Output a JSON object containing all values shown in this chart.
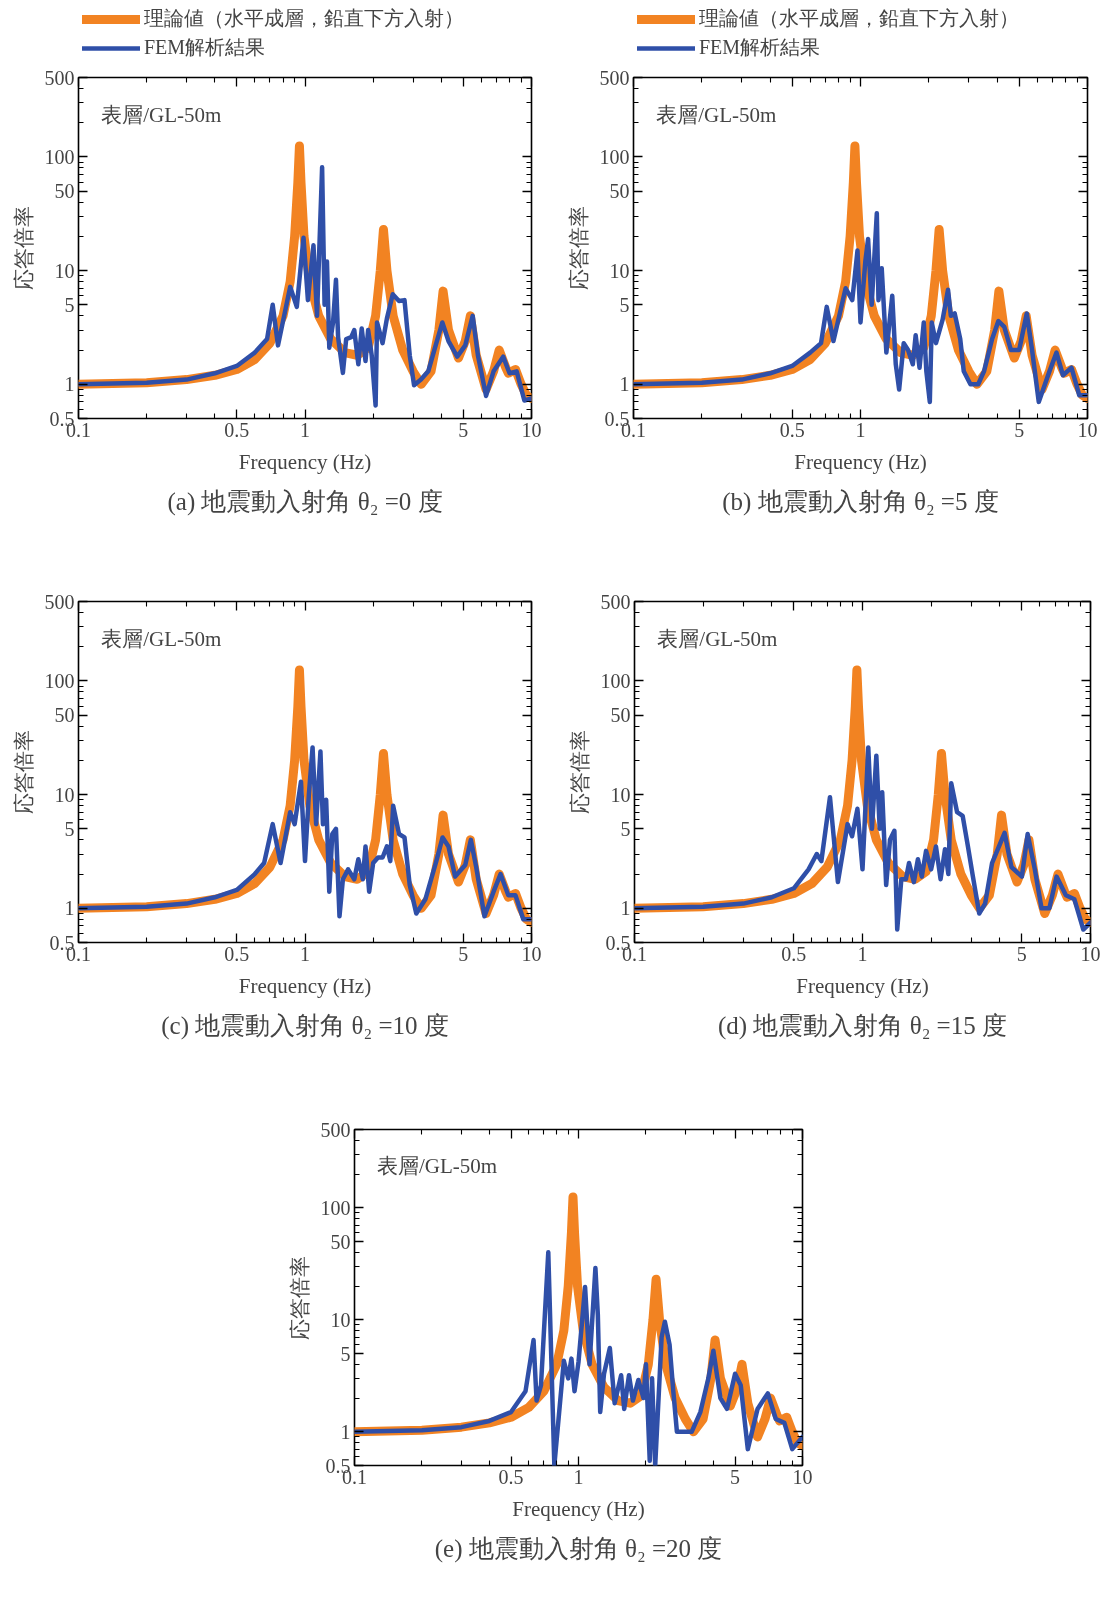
{
  "chart_data": [
    {
      "type": "line",
      "title": "(a) 地震動入射角 θ₂ =0 度",
      "xlabel": "Frequency (Hz)",
      "ylabel": "応答倍率",
      "annotations": [
        "表層/GL-50m"
      ],
      "log": "xy",
      "legend": "top",
      "xlim": [
        0.1,
        10
      ],
      "ylim": [
        0.5,
        500
      ],
      "xticks": [
        0.1,
        {
          "value": 0.2,
          "label": null
        },
        {
          "value": 0.3,
          "label": null
        },
        {
          "value": 0.4,
          "label": null
        },
        0.5,
        {
          "value": 0.6,
          "label": null
        },
        {
          "value": 0.7,
          "label": null
        },
        {
          "value": 0.8,
          "label": null
        },
        {
          "value": 0.9,
          "label": null
        },
        1,
        {
          "value": 2,
          "label": null
        },
        {
          "value": 3,
          "label": null
        },
        {
          "value": 4,
          "label": null
        },
        5,
        {
          "value": 6,
          "label": null
        },
        {
          "value": 7,
          "label": null
        },
        {
          "value": 8,
          "label": null
        },
        {
          "value": 9,
          "label": null
        },
        10
      ],
      "yticks": [
        0.5,
        {
          "value": 0.6,
          "label": null
        },
        {
          "value": 0.7,
          "label": null
        },
        {
          "value": 0.8,
          "label": null
        },
        {
          "value": 0.9,
          "label": null
        },
        1,
        {
          "value": 2,
          "label": null
        },
        {
          "value": 3,
          "label": null
        },
        {
          "value": 4,
          "label": null
        },
        5,
        {
          "value": 6,
          "label": null
        },
        {
          "value": 7,
          "label": null
        },
        {
          "value": 8,
          "label": null
        },
        {
          "value": 9,
          "label": null
        },
        10,
        {
          "value": 20,
          "label": null
        },
        {
          "value": 30,
          "label": null
        },
        {
          "value": 40,
          "label": null
        },
        50,
        {
          "value": 60,
          "label": null
        },
        {
          "value": 70,
          "label": null
        },
        {
          "value": 80,
          "label": null
        },
        {
          "value": 90,
          "label": null
        },
        100,
        {
          "value": 200,
          "label": null
        },
        {
          "value": 300,
          "label": null
        },
        {
          "value": 400,
          "label": null
        },
        500
      ],
      "series": [
        {
          "name": "理論値（水平成層，鉛直下方入射）",
          "color": "#f28322",
          "x": [
            0.1,
            0.2,
            0.3,
            0.4,
            0.5,
            0.6,
            0.7,
            0.8,
            0.86,
            0.9,
            0.93,
            0.945,
            0.96,
            0.99,
            1.05,
            1.15,
            1.3,
            1.5,
            1.7,
            1.9,
            2.05,
            2.15,
            2.22,
            2.3,
            2.45,
            2.7,
            3.0,
            3.26,
            3.6,
            3.9,
            4.07,
            4.3,
            4.76,
            5.1,
            5.37,
            5.7,
            6.3,
            6.8,
            7.2,
            7.7,
            7.9,
            8.5,
            9.0,
            9.5,
            10
          ],
          "values": [
            1.0,
            1.03,
            1.1,
            1.2,
            1.35,
            1.65,
            2.3,
            4,
            8,
            20,
            60,
            125,
            60,
            20,
            8,
            4,
            2.5,
            1.9,
            1.8,
            2.1,
            4,
            10,
            23,
            10,
            4,
            2,
            1.3,
            1.0,
            1.3,
            3,
            6.6,
            3,
            1.7,
            2.4,
            4.0,
            1.8,
            0.9,
            1.3,
            2.0,
            1.4,
            1.25,
            1.35,
            1.0,
            0.8,
            0.75
          ]
        },
        {
          "name": "FEM解析結果",
          "color": "#2f4fa8",
          "x": [
            0.1,
            0.2,
            0.3,
            0.4,
            0.5,
            0.6,
            0.68,
            0.72,
            0.76,
            0.86,
            0.92,
            0.985,
            1.03,
            1.09,
            1.13,
            1.19,
            1.22,
            1.25,
            1.28,
            1.33,
            1.37,
            1.4,
            1.47,
            1.52,
            1.6,
            1.65,
            1.72,
            1.78,
            1.85,
            1.9,
            1.97,
            2.05,
            2.08,
            2.2,
            2.3,
            2.44,
            2.6,
            2.75,
            2.9,
            3.03,
            3.25,
            3.5,
            3.8,
            4.04,
            4.3,
            4.7,
            5.1,
            5.5,
            5.8,
            6.3,
            6.8,
            7.5,
            8.0,
            8.6,
            9.3,
            10
          ],
          "values": [
            1.0,
            1.03,
            1.1,
            1.25,
            1.45,
            1.9,
            2.5,
            5.0,
            2.2,
            7.2,
            4.8,
            19.5,
            5.5,
            16.7,
            4.0,
            81,
            5,
            12,
            2.1,
            3.5,
            8.3,
            2.6,
            1.26,
            2.5,
            2.6,
            3.0,
            1.5,
            3.1,
            1.6,
            3.0,
            1.8,
            0.65,
            3.5,
            2.3,
            3.8,
            6.2,
            5.4,
            5.5,
            1.8,
            0.98,
            1.1,
            1.3,
            2.3,
            3.5,
            2.4,
            1.75,
            2.2,
            4.0,
            1.8,
            0.79,
            1.3,
            1.75,
            1.25,
            1.3,
            0.72,
            0.75
          ]
        }
      ]
    },
    {
      "type": "line",
      "title": "(b) 地震動入射角 θ₂ =5 度",
      "xlabel": "Frequency (Hz)",
      "ylabel": "応答倍率",
      "annotations": [
        "表層/GL-50m"
      ],
      "log": "xy",
      "legend": "top",
      "xlim": [
        0.1,
        10
      ],
      "ylim": [
        0.5,
        500
      ],
      "xticks": [
        0.1,
        {
          "value": 0.2,
          "label": null
        },
        {
          "value": 0.3,
          "label": null
        },
        {
          "value": 0.4,
          "label": null
        },
        0.5,
        {
          "value": 0.6,
          "label": null
        },
        {
          "value": 0.7,
          "label": null
        },
        {
          "value": 0.8,
          "label": null
        },
        {
          "value": 0.9,
          "label": null
        },
        1,
        {
          "value": 2,
          "label": null
        },
        {
          "value": 3,
          "label": null
        },
        {
          "value": 4,
          "label": null
        },
        5,
        {
          "value": 6,
          "label": null
        },
        {
          "value": 7,
          "label": null
        },
        {
          "value": 8,
          "label": null
        },
        {
          "value": 9,
          "label": null
        },
        10
      ],
      "yticks": [
        0.5,
        {
          "value": 0.6,
          "label": null
        },
        {
          "value": 0.7,
          "label": null
        },
        {
          "value": 0.8,
          "label": null
        },
        {
          "value": 0.9,
          "label": null
        },
        1,
        {
          "value": 2,
          "label": null
        },
        {
          "value": 3,
          "label": null
        },
        {
          "value": 4,
          "label": null
        },
        5,
        {
          "value": 6,
          "label": null
        },
        {
          "value": 7,
          "label": null
        },
        {
          "value": 8,
          "label": null
        },
        {
          "value": 9,
          "label": null
        },
        10,
        {
          "value": 20,
          "label": null
        },
        {
          "value": 30,
          "label": null
        },
        {
          "value": 40,
          "label": null
        },
        50,
        {
          "value": 60,
          "label": null
        },
        {
          "value": 70,
          "label": null
        },
        {
          "value": 80,
          "label": null
        },
        {
          "value": 90,
          "label": null
        },
        100,
        {
          "value": 200,
          "label": null
        },
        {
          "value": 300,
          "label": null
        },
        {
          "value": 400,
          "label": null
        },
        500
      ],
      "series": [
        {
          "name": "理論値（水平成層，鉛直下方入射）",
          "color": "#f28322",
          "x": [
            0.1,
            0.2,
            0.3,
            0.4,
            0.5,
            0.6,
            0.7,
            0.8,
            0.86,
            0.9,
            0.93,
            0.945,
            0.96,
            0.99,
            1.05,
            1.15,
            1.3,
            1.5,
            1.7,
            1.9,
            2.05,
            2.15,
            2.22,
            2.3,
            2.45,
            2.7,
            3.0,
            3.26,
            3.6,
            3.9,
            4.07,
            4.3,
            4.76,
            5.1,
            5.37,
            5.7,
            6.3,
            6.8,
            7.2,
            7.7,
            7.9,
            8.5,
            9.0,
            9.5,
            10
          ],
          "values": [
            1.0,
            1.03,
            1.1,
            1.2,
            1.35,
            1.65,
            2.3,
            4,
            8,
            20,
            60,
            125,
            60,
            20,
            8,
            4,
            2.5,
            1.9,
            1.8,
            2.1,
            4,
            10,
            23,
            10,
            4,
            2,
            1.3,
            1.0,
            1.3,
            3,
            6.6,
            3,
            1.7,
            2.4,
            4.0,
            1.8,
            0.9,
            1.3,
            2.0,
            1.4,
            1.25,
            1.35,
            1.0,
            0.8,
            0.75
          ]
        },
        {
          "name": "FEM解析結果",
          "color": "#2f4fa8",
          "x": [
            0.1,
            0.2,
            0.3,
            0.4,
            0.5,
            0.6,
            0.67,
            0.71,
            0.76,
            0.86,
            0.92,
            0.97,
            1.0,
            1.05,
            1.08,
            1.12,
            1.18,
            1.2,
            1.24,
            1.3,
            1.38,
            1.43,
            1.48,
            1.55,
            1.62,
            1.7,
            1.75,
            1.82,
            1.9,
            1.95,
            2.02,
            2.06,
            2.15,
            2.3,
            2.43,
            2.5,
            2.6,
            2.75,
            2.85,
            3.05,
            3.3,
            3.5,
            3.8,
            4.05,
            4.3,
            4.6,
            5.0,
            5.4,
            5.7,
            6.1,
            6.8,
            7.3,
            7.8,
            8.5,
            9.2,
            10
          ],
          "values": [
            1.0,
            1.03,
            1.1,
            1.25,
            1.45,
            1.9,
            2.3,
            4.8,
            2.4,
            7,
            5.5,
            15,
            3.5,
            12,
            19,
            5,
            32,
            5.5,
            10.5,
            1.9,
            6,
            1.5,
            0.9,
            2.3,
            2.0,
            1.5,
            2.7,
            1.4,
            3.5,
            1.3,
            0.7,
            3.5,
            2.3,
            3.7,
            6.8,
            4.0,
            4.2,
            2.5,
            1.3,
            1.0,
            1.0,
            1.3,
            2.5,
            3.6,
            3.2,
            2.0,
            2.0,
            4.2,
            2.0,
            0.7,
            1.3,
            1.9,
            1.2,
            1.4,
            0.8,
            0.8
          ]
        }
      ]
    },
    {
      "type": "line",
      "title": "(c) 地震動入射角 θ₂ =10 度",
      "xlabel": "Frequency (Hz)",
      "ylabel": "応答倍率",
      "annotations": [
        "表層/GL-50m"
      ],
      "log": "xy",
      "xlim": [
        0.1,
        10
      ],
      "ylim": [
        0.5,
        500
      ],
      "xticks": [
        0.1,
        {
          "value": 0.2,
          "label": null
        },
        {
          "value": 0.3,
          "label": null
        },
        {
          "value": 0.4,
          "label": null
        },
        0.5,
        {
          "value": 0.6,
          "label": null
        },
        {
          "value": 0.7,
          "label": null
        },
        {
          "value": 0.8,
          "label": null
        },
        {
          "value": 0.9,
          "label": null
        },
        1,
        {
          "value": 2,
          "label": null
        },
        {
          "value": 3,
          "label": null
        },
        {
          "value": 4,
          "label": null
        },
        5,
        {
          "value": 6,
          "label": null
        },
        {
          "value": 7,
          "label": null
        },
        {
          "value": 8,
          "label": null
        },
        {
          "value": 9,
          "label": null
        },
        10
      ],
      "yticks": [
        0.5,
        {
          "value": 0.6,
          "label": null
        },
        {
          "value": 0.7,
          "label": null
        },
        {
          "value": 0.8,
          "label": null
        },
        {
          "value": 0.9,
          "label": null
        },
        1,
        {
          "value": 2,
          "label": null
        },
        {
          "value": 3,
          "label": null
        },
        {
          "value": 4,
          "label": null
        },
        5,
        {
          "value": 6,
          "label": null
        },
        {
          "value": 7,
          "label": null
        },
        {
          "value": 8,
          "label": null
        },
        {
          "value": 9,
          "label": null
        },
        10,
        {
          "value": 20,
          "label": null
        },
        {
          "value": 30,
          "label": null
        },
        {
          "value": 40,
          "label": null
        },
        50,
        {
          "value": 60,
          "label": null
        },
        {
          "value": 70,
          "label": null
        },
        {
          "value": 80,
          "label": null
        },
        {
          "value": 90,
          "label": null
        },
        100,
        {
          "value": 200,
          "label": null
        },
        {
          "value": 300,
          "label": null
        },
        {
          "value": 400,
          "label": null
        },
        500
      ],
      "series": [
        {
          "color": "#f28322",
          "x": [
            0.1,
            0.2,
            0.3,
            0.4,
            0.5,
            0.6,
            0.7,
            0.8,
            0.86,
            0.9,
            0.93,
            0.945,
            0.96,
            0.99,
            1.05,
            1.15,
            1.3,
            1.5,
            1.7,
            1.9,
            2.05,
            2.15,
            2.22,
            2.3,
            2.45,
            2.7,
            3.0,
            3.26,
            3.6,
            3.9,
            4.07,
            4.3,
            4.76,
            5.1,
            5.37,
            5.7,
            6.3,
            6.8,
            7.2,
            7.7,
            7.9,
            8.5,
            9.0,
            9.5,
            10
          ],
          "values": [
            1.0,
            1.03,
            1.1,
            1.2,
            1.35,
            1.65,
            2.3,
            4,
            8,
            20,
            60,
            125,
            60,
            20,
            8,
            4,
            2.5,
            1.9,
            1.8,
            2.1,
            4,
            10,
            23,
            10,
            4,
            2,
            1.3,
            1.0,
            1.3,
            3,
            6.6,
            3,
            1.7,
            2.4,
            4.0,
            1.8,
            0.9,
            1.3,
            2.0,
            1.4,
            1.25,
            1.35,
            1.0,
            0.8,
            0.75
          ]
        },
        {
          "color": "#2f4fa8",
          "x": [
            0.1,
            0.2,
            0.3,
            0.4,
            0.5,
            0.6,
            0.66,
            0.72,
            0.78,
            0.86,
            0.9,
            0.96,
            1.0,
            1.04,
            1.08,
            1.12,
            1.17,
            1.2,
            1.24,
            1.28,
            1.32,
            1.37,
            1.42,
            1.47,
            1.55,
            1.65,
            1.72,
            1.8,
            1.85,
            1.92,
            2.0,
            2.1,
            2.2,
            2.3,
            2.38,
            2.45,
            2.6,
            2.75,
            2.9,
            3.1,
            3.4,
            3.8,
            4.05,
            4.3,
            4.6,
            5.1,
            5.4,
            5.7,
            6.2,
            6.8,
            7.3,
            7.9,
            8.5,
            9.2,
            10
          ],
          "values": [
            1.0,
            1.03,
            1.1,
            1.25,
            1.45,
            2.0,
            2.5,
            5.5,
            2.5,
            7,
            5.5,
            13,
            2.6,
            10,
            26,
            5.5,
            24,
            5.5,
            9,
            1.4,
            4.5,
            5,
            0.85,
            1.8,
            2.2,
            1.8,
            2.7,
            1.8,
            3.5,
            1.4,
            2.5,
            2.8,
            2.8,
            3.5,
            2.6,
            8,
            4.5,
            4.2,
            1.6,
            0.9,
            1.2,
            2.6,
            4.2,
            3.5,
            1.9,
            2.4,
            4.0,
            2.3,
            0.85,
            1.4,
            2.0,
            1.3,
            1.3,
            0.8,
            0.8
          ]
        }
      ]
    },
    {
      "type": "line",
      "title": "(d) 地震動入射角 θ₂ =15 度",
      "xlabel": "Frequency (Hz)",
      "ylabel": "応答倍率",
      "annotations": [
        "表層/GL-50m"
      ],
      "log": "xy",
      "xlim": [
        0.1,
        10
      ],
      "ylim": [
        0.5,
        500
      ],
      "xticks": [
        0.1,
        {
          "value": 0.2,
          "label": null
        },
        {
          "value": 0.3,
          "label": null
        },
        {
          "value": 0.4,
          "label": null
        },
        0.5,
        {
          "value": 0.6,
          "label": null
        },
        {
          "value": 0.7,
          "label": null
        },
        {
          "value": 0.8,
          "label": null
        },
        {
          "value": 0.9,
          "label": null
        },
        1,
        {
          "value": 2,
          "label": null
        },
        {
          "value": 3,
          "label": null
        },
        {
          "value": 4,
          "label": null
        },
        5,
        {
          "value": 6,
          "label": null
        },
        {
          "value": 7,
          "label": null
        },
        {
          "value": 8,
          "label": null
        },
        {
          "value": 9,
          "label": null
        },
        10
      ],
      "yticks": [
        0.5,
        {
          "value": 0.6,
          "label": null
        },
        {
          "value": 0.7,
          "label": null
        },
        {
          "value": 0.8,
          "label": null
        },
        {
          "value": 0.9,
          "label": null
        },
        1,
        {
          "value": 2,
          "label": null
        },
        {
          "value": 3,
          "label": null
        },
        {
          "value": 4,
          "label": null
        },
        5,
        {
          "value": 6,
          "label": null
        },
        {
          "value": 7,
          "label": null
        },
        {
          "value": 8,
          "label": null
        },
        {
          "value": 9,
          "label": null
        },
        10,
        {
          "value": 20,
          "label": null
        },
        {
          "value": 30,
          "label": null
        },
        {
          "value": 40,
          "label": null
        },
        50,
        {
          "value": 60,
          "label": null
        },
        {
          "value": 70,
          "label": null
        },
        {
          "value": 80,
          "label": null
        },
        {
          "value": 90,
          "label": null
        },
        100,
        {
          "value": 200,
          "label": null
        },
        {
          "value": 300,
          "label": null
        },
        {
          "value": 400,
          "label": null
        },
        500
      ],
      "series": [
        {
          "color": "#f28322",
          "x": [
            0.1,
            0.2,
            0.3,
            0.4,
            0.5,
            0.6,
            0.7,
            0.8,
            0.86,
            0.9,
            0.93,
            0.945,
            0.96,
            0.99,
            1.05,
            1.15,
            1.3,
            1.5,
            1.7,
            1.9,
            2.05,
            2.15,
            2.22,
            2.3,
            2.45,
            2.7,
            3.0,
            3.26,
            3.6,
            3.9,
            4.07,
            4.3,
            4.76,
            5.1,
            5.37,
            5.7,
            6.3,
            6.8,
            7.2,
            7.7,
            7.9,
            8.5,
            9.0,
            9.5,
            10
          ],
          "values": [
            1.0,
            1.03,
            1.1,
            1.2,
            1.35,
            1.65,
            2.3,
            4,
            8,
            20,
            60,
            125,
            60,
            20,
            8,
            4,
            2.5,
            1.9,
            1.8,
            2.1,
            4,
            10,
            23,
            10,
            4,
            2,
            1.3,
            1.0,
            1.3,
            3,
            6.6,
            3,
            1.7,
            2.4,
            4.0,
            1.8,
            0.9,
            1.3,
            2.0,
            1.4,
            1.25,
            1.35,
            1.0,
            0.8,
            0.75
          ]
        },
        {
          "color": "#2f4fa8",
          "x": [
            0.1,
            0.2,
            0.3,
            0.4,
            0.5,
            0.58,
            0.63,
            0.66,
            0.72,
            0.78,
            0.86,
            0.9,
            0.95,
            1.0,
            1.06,
            1.1,
            1.15,
            1.19,
            1.22,
            1.27,
            1.32,
            1.38,
            1.42,
            1.48,
            1.55,
            1.6,
            1.68,
            1.75,
            1.82,
            1.9,
            2.0,
            2.1,
            2.2,
            2.3,
            2.38,
            2.45,
            2.6,
            2.75,
            2.9,
            3.05,
            3.25,
            3.45,
            3.7,
            4.2,
            4.5,
            5.0,
            5.3,
            5.7,
            6.1,
            6.6,
            7.1,
            7.8,
            8.5,
            9.3,
            10
          ],
          "values": [
            1.0,
            1.03,
            1.1,
            1.25,
            1.5,
            2.2,
            3.0,
            2.6,
            9.5,
            1.7,
            5.5,
            4.3,
            7.5,
            2.2,
            26,
            5,
            22,
            5,
            10.5,
            1.6,
            4,
            4.8,
            0.65,
            1.8,
            1.8,
            2.5,
            1.7,
            2.7,
            1.9,
            3.2,
            2.2,
            3.5,
            1.8,
            3.3,
            2.0,
            12.6,
            7,
            6.5,
            3.5,
            1.9,
            0.9,
            1.1,
            2.5,
            4.6,
            2.3,
            1.9,
            4.5,
            2.2,
            1.0,
            1.0,
            1.9,
            1.3,
            1.2,
            0.65,
            0.75
          ]
        }
      ]
    },
    {
      "type": "line",
      "title": "(e) 地震動入射角 θ₂ =20 度",
      "xlabel": "Frequency (Hz)",
      "ylabel": "応答倍率",
      "annotations": [
        "表層/GL-50m"
      ],
      "log": "xy",
      "xlim": [
        0.1,
        10
      ],
      "ylim": [
        0.5,
        500
      ],
      "xticks": [
        0.1,
        {
          "value": 0.2,
          "label": null
        },
        {
          "value": 0.3,
          "label": null
        },
        {
          "value": 0.4,
          "label": null
        },
        0.5,
        {
          "value": 0.6,
          "label": null
        },
        {
          "value": 0.7,
          "label": null
        },
        {
          "value": 0.8,
          "label": null
        },
        {
          "value": 0.9,
          "label": null
        },
        1,
        {
          "value": 2,
          "label": null
        },
        {
          "value": 3,
          "label": null
        },
        {
          "value": 4,
          "label": null
        },
        5,
        {
          "value": 6,
          "label": null
        },
        {
          "value": 7,
          "label": null
        },
        {
          "value": 8,
          "label": null
        },
        {
          "value": 9,
          "label": null
        },
        10
      ],
      "yticks": [
        0.5,
        {
          "value": 0.6,
          "label": null
        },
        {
          "value": 0.7,
          "label": null
        },
        {
          "value": 0.8,
          "label": null
        },
        {
          "value": 0.9,
          "label": null
        },
        1,
        {
          "value": 2,
          "label": null
        },
        {
          "value": 3,
          "label": null
        },
        {
          "value": 4,
          "label": null
        },
        5,
        {
          "value": 6,
          "label": null
        },
        {
          "value": 7,
          "label": null
        },
        {
          "value": 8,
          "label": null
        },
        {
          "value": 9,
          "label": null
        },
        10,
        {
          "value": 20,
          "label": null
        },
        {
          "value": 30,
          "label": null
        },
        {
          "value": 40,
          "label": null
        },
        50,
        {
          "value": 60,
          "label": null
        },
        {
          "value": 70,
          "label": null
        },
        {
          "value": 80,
          "label": null
        },
        {
          "value": 90,
          "label": null
        },
        100,
        {
          "value": 200,
          "label": null
        },
        {
          "value": 300,
          "label": null
        },
        {
          "value": 400,
          "label": null
        },
        500
      ],
      "series": [
        {
          "color": "#f28322",
          "x": [
            0.1,
            0.2,
            0.3,
            0.4,
            0.5,
            0.6,
            0.7,
            0.8,
            0.86,
            0.9,
            0.93,
            0.945,
            0.96,
            0.99,
            1.05,
            1.15,
            1.3,
            1.5,
            1.7,
            1.9,
            2.05,
            2.15,
            2.22,
            2.3,
            2.45,
            2.7,
            3.0,
            3.26,
            3.6,
            3.9,
            4.07,
            4.3,
            4.76,
            5.1,
            5.37,
            5.7,
            6.3,
            6.8,
            7.2,
            7.7,
            7.9,
            8.5,
            9.0,
            9.5,
            10
          ],
          "values": [
            1.0,
            1.03,
            1.1,
            1.2,
            1.35,
            1.65,
            2.3,
            4,
            8,
            20,
            60,
            125,
            60,
            20,
            8,
            4,
            2.5,
            1.9,
            1.8,
            2.1,
            4,
            10,
            23,
            10,
            4,
            2,
            1.3,
            1.0,
            1.3,
            3,
            6.6,
            3,
            1.7,
            2.4,
            4.0,
            1.8,
            0.9,
            1.3,
            2.0,
            1.4,
            1.25,
            1.35,
            1.0,
            0.8,
            0.75
          ]
        },
        {
          "color": "#2f4fa8",
          "x": [
            0.1,
            0.2,
            0.3,
            0.4,
            0.5,
            0.58,
            0.63,
            0.65,
            0.68,
            0.733,
            0.78,
            0.86,
            0.9,
            0.93,
            0.96,
            1.0,
            1.07,
            1.12,
            1.19,
            1.22,
            1.25,
            1.3,
            1.38,
            1.45,
            1.55,
            1.6,
            1.68,
            1.75,
            1.85,
            1.95,
            2.0,
            2.08,
            2.13,
            2.2,
            2.35,
            2.43,
            2.55,
            2.65,
            2.75,
            2.9,
            3.2,
            3.5,
            3.8,
            4.0,
            4.3,
            4.6,
            5.0,
            5.3,
            5.7,
            6.3,
            7.0,
            7.6,
            8.3,
            9.0,
            10
          ],
          "values": [
            1.0,
            1.03,
            1.1,
            1.25,
            1.5,
            2.3,
            6.6,
            1.9,
            2.6,
            40,
            0.5,
            4.3,
            3.0,
            4.5,
            2.3,
            4.2,
            19.6,
            4,
            29,
            11,
            1.5,
            3.3,
            5.6,
            1.8,
            3.2,
            1.6,
            3.2,
            1.9,
            2.9,
            2.0,
            4.0,
            0.55,
            3.0,
            0.5,
            7.0,
            9.6,
            6,
            2.3,
            1.0,
            1.0,
            1.0,
            1.5,
            3.0,
            5.3,
            2.0,
            1.6,
            3.3,
            2.6,
            0.7,
            1.6,
            2.2,
            1.3,
            1.2,
            0.7,
            0.9
          ]
        }
      ]
    }
  ]
}
